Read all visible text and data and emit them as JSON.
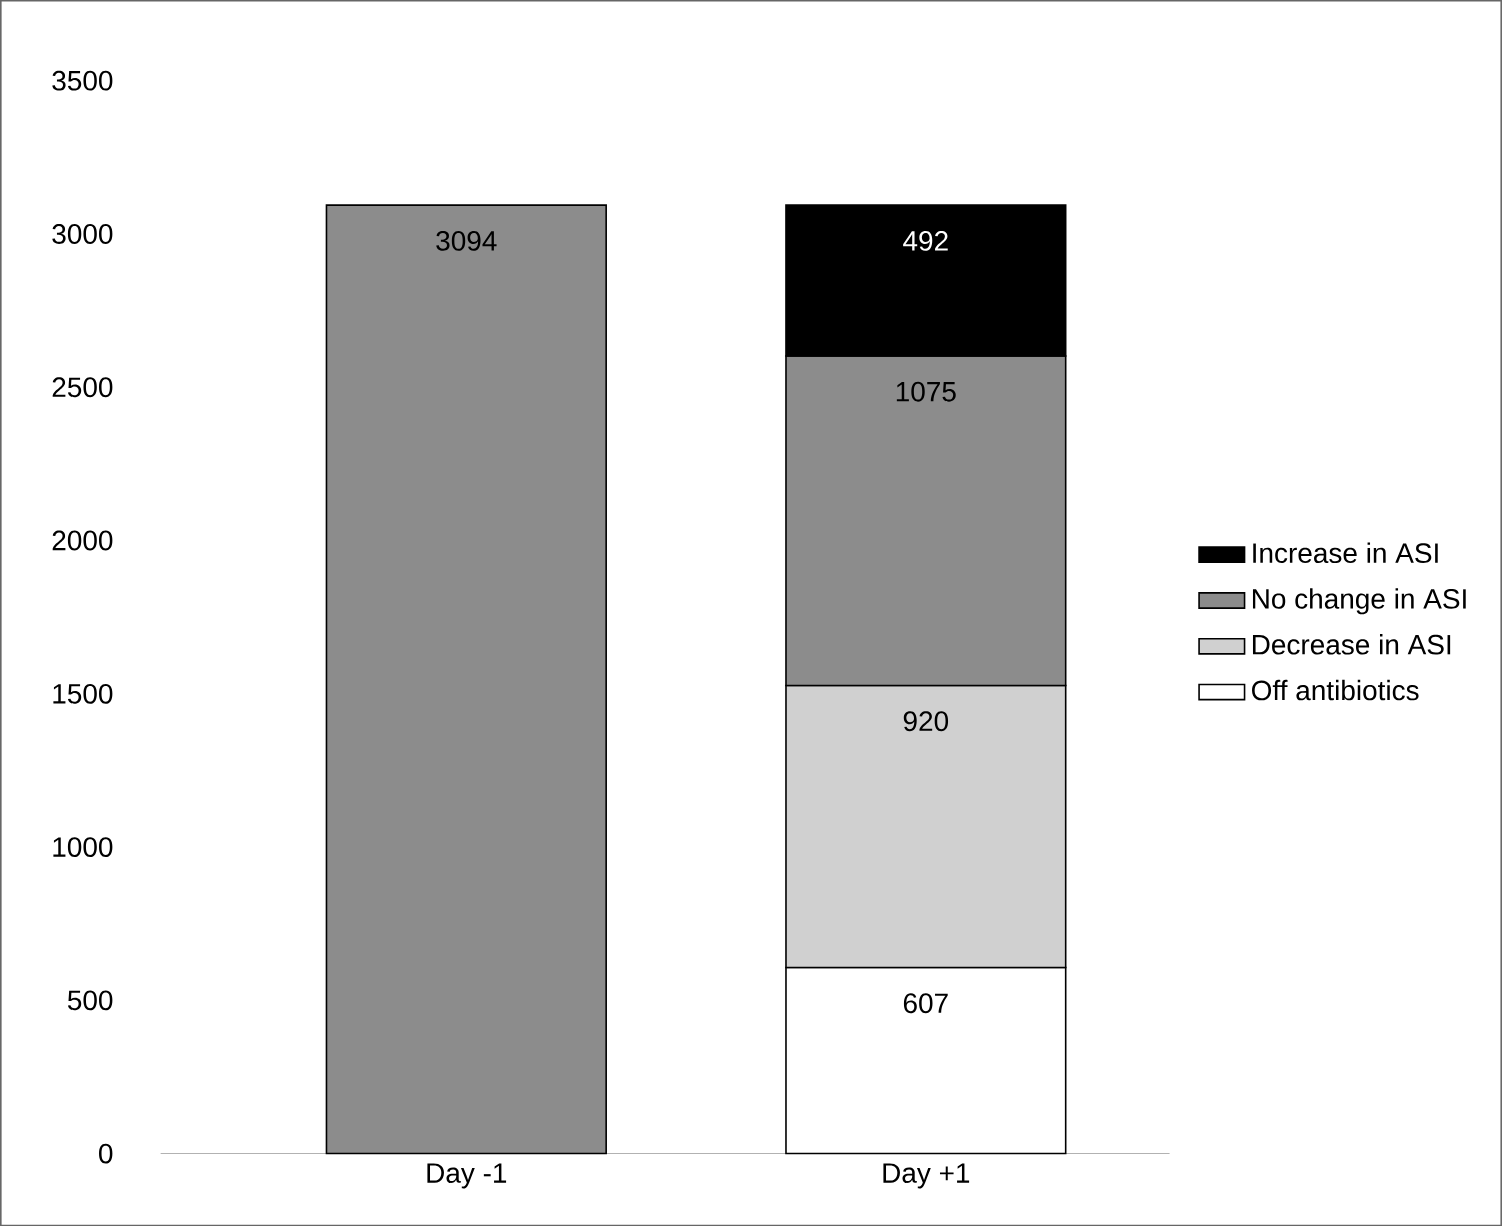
{
  "chart_data": {
    "type": "bar",
    "stacked": true,
    "categories": [
      "Day -1",
      "Day +1"
    ],
    "series": [
      {
        "name": "Off antibiotics",
        "color": "#ffffff",
        "values": [
          null,
          607
        ]
      },
      {
        "name": "Decrease in ASI",
        "color": "#d0d0d0",
        "values": [
          null,
          920
        ]
      },
      {
        "name": "No change in ASI",
        "color": "#8c8c8c",
        "values": [
          3094,
          1075
        ]
      },
      {
        "name": "Increase in ASI",
        "color": "#000000",
        "values": [
          null,
          492
        ]
      }
    ],
    "ylim": [
      0,
      3500
    ],
    "yticks": [
      0,
      500,
      1000,
      1500,
      2000,
      2500,
      3000,
      3500
    ],
    "data_labels": true,
    "legend": "right",
    "grid": false
  }
}
